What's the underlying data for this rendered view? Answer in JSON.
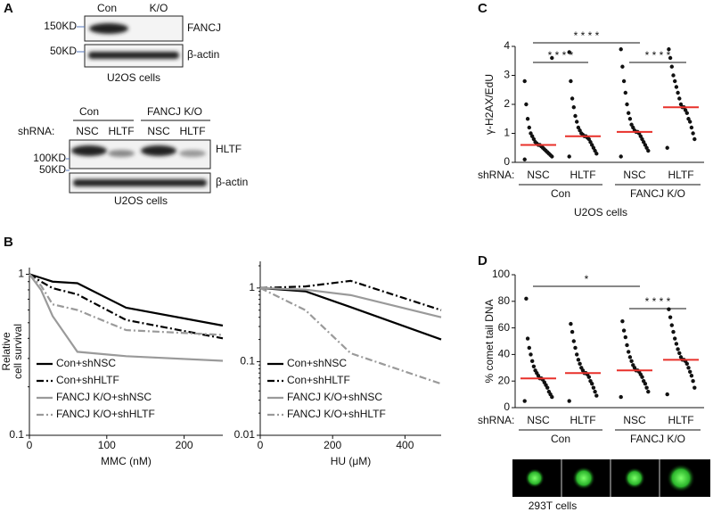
{
  "panel_labels": [
    "A",
    "B",
    "C",
    "D"
  ],
  "panel_a": {
    "blot1": {
      "lanes": [
        "Con",
        "K/O"
      ],
      "markers": [
        "150KD",
        "50KD"
      ],
      "proteins": [
        "FANCJ",
        "β-actin"
      ],
      "caption": "U2OS cells"
    },
    "blot2": {
      "groups": [
        "Con",
        "FANCJ K/O"
      ],
      "shrna_label": "shRNA:",
      "lanes": [
        "NSC",
        "HLTF",
        "NSC",
        "HLTF"
      ],
      "markers": [
        "100KD",
        "50KD"
      ],
      "proteins": [
        "HLTF",
        "β-actin"
      ],
      "caption": "U2OS cells"
    }
  },
  "chart_data": [
    {
      "type": "line",
      "x_label": "MMC (nM)",
      "y_label": [
        "Relative",
        "cell survival"
      ],
      "log_y": true,
      "x": [
        0,
        15,
        30,
        62,
        125,
        250
      ],
      "xlim": [
        0,
        250
      ],
      "xticks": [
        0,
        100,
        200
      ],
      "ylim": [
        0.1,
        1.1
      ],
      "yticks": [
        1,
        0.1
      ],
      "series": [
        {
          "name": "Con+shNSC",
          "color": "#000000",
          "style": "solid",
          "values": [
            1,
            0.95,
            0.9,
            0.88,
            0.62,
            0.48
          ]
        },
        {
          "name": "Con+shHLTF",
          "color": "#000000",
          "style": "dash-dot",
          "values": [
            1,
            0.9,
            0.82,
            0.75,
            0.52,
            0.4
          ]
        },
        {
          "name": "FANCJ K/O+shNSC",
          "color": "#9a9a9a",
          "style": "solid",
          "values": [
            1,
            0.8,
            0.55,
            0.33,
            0.31,
            0.29
          ]
        },
        {
          "name": "FANCJ K/O+shHLTF",
          "color": "#9a9a9a",
          "style": "dash-dot",
          "values": [
            1,
            0.85,
            0.65,
            0.6,
            0.45,
            0.42
          ]
        }
      ]
    },
    {
      "type": "line",
      "x_label": "HU (μM)",
      "log_y": true,
      "x": [
        0,
        125,
        250,
        500
      ],
      "xlim": [
        0,
        500
      ],
      "xticks": [
        0,
        200,
        400
      ],
      "ylim": [
        0.01,
        2.3
      ],
      "yticks": [
        1,
        0.1,
        0.01
      ],
      "series": [
        {
          "name": "Con+shNSC",
          "color": "#000000",
          "style": "solid",
          "values": [
            1,
            0.9,
            0.55,
            0.2
          ]
        },
        {
          "name": "Con+shHLTF",
          "color": "#000000",
          "style": "dash-dot",
          "values": [
            1,
            1.05,
            1.25,
            0.5
          ]
        },
        {
          "name": "FANCJ K/O+shNSC",
          "color": "#9a9a9a",
          "style": "solid",
          "values": [
            1,
            0.95,
            0.8,
            0.4
          ]
        },
        {
          "name": "FANCJ K/O+shHLTF",
          "color": "#9a9a9a",
          "style": "dash-dot",
          "values": [
            1,
            0.5,
            0.13,
            0.05
          ]
        }
      ]
    },
    {
      "type": "dot",
      "y_label": "γ-H2AX/EdU",
      "shrna_label": "shRNA:",
      "caption": "U2OS cells",
      "categories": [
        "NSC",
        "HLTF",
        "NSC",
        "HLTF"
      ],
      "groups": [
        "Con",
        "FANCJ K/O"
      ],
      "ylim": [
        0,
        4
      ],
      "yticks": [
        0,
        1,
        2,
        3,
        4
      ],
      "point_color": "#111111",
      "median_color": "#e8302a",
      "significance": [
        "* * * *",
        "* * * *",
        "* * * *"
      ],
      "values": [
        [
          0.1,
          0.2,
          0.25,
          0.3,
          0.35,
          0.4,
          0.45,
          0.5,
          0.55,
          0.6,
          0.6,
          0.65,
          0.7,
          0.8,
          0.9,
          1.0,
          1.2,
          1.5,
          2.0,
          2.8,
          3.6
        ],
        [
          0.2,
          0.3,
          0.4,
          0.5,
          0.6,
          0.7,
          0.8,
          0.85,
          0.9,
          0.9,
          0.95,
          1.0,
          1.1,
          1.2,
          1.4,
          1.6,
          1.9,
          2.2,
          2.8,
          3.8
        ],
        [
          0.2,
          0.4,
          0.5,
          0.6,
          0.7,
          0.8,
          0.9,
          1.0,
          1.05,
          1.05,
          1.1,
          1.2,
          1.3,
          1.5,
          1.7,
          2.0,
          2.4,
          2.8,
          3.3,
          3.9
        ],
        [
          0.5,
          0.8,
          1.0,
          1.2,
          1.4,
          1.5,
          1.7,
          1.8,
          1.9,
          1.9,
          2.0,
          2.2,
          2.4,
          2.6,
          2.8,
          3.0,
          3.3,
          3.6,
          3.9
        ]
      ],
      "medians": [
        0.6,
        0.9,
        1.05,
        1.9
      ]
    },
    {
      "type": "dot",
      "y_label": "% comet tail DNA",
      "shrna_label": "shRNA:",
      "caption": "293T cells",
      "categories": [
        "NSC",
        "HLTF",
        "NSC",
        "HLTF"
      ],
      "groups": [
        "Con",
        "FANCJ K/O"
      ],
      "ylim": [
        0,
        100
      ],
      "yticks": [
        0,
        20,
        40,
        60,
        80,
        100
      ],
      "point_color": "#111111",
      "median_color": "#e8302a",
      "significance": [
        "*",
        "* * * *"
      ],
      "values": [
        [
          5,
          8,
          10,
          12,
          15,
          17,
          19,
          21,
          22,
          22,
          24,
          26,
          28,
          31,
          35,
          40,
          45,
          52,
          82
        ],
        [
          5,
          9,
          12,
          15,
          18,
          20,
          23,
          25,
          26,
          26,
          28,
          30,
          33,
          36,
          40,
          45,
          50,
          57,
          63
        ],
        [
          8,
          12,
          15,
          18,
          20,
          23,
          25,
          27,
          28,
          28,
          30,
          32,
          35,
          38,
          42,
          47,
          53,
          58,
          65
        ],
        [
          10,
          15,
          20,
          24,
          27,
          30,
          33,
          35,
          36,
          36,
          38,
          41,
          44,
          48,
          52,
          57,
          62,
          68,
          74
        ]
      ],
      "medians": [
        22,
        26,
        28,
        36
      ]
    }
  ]
}
